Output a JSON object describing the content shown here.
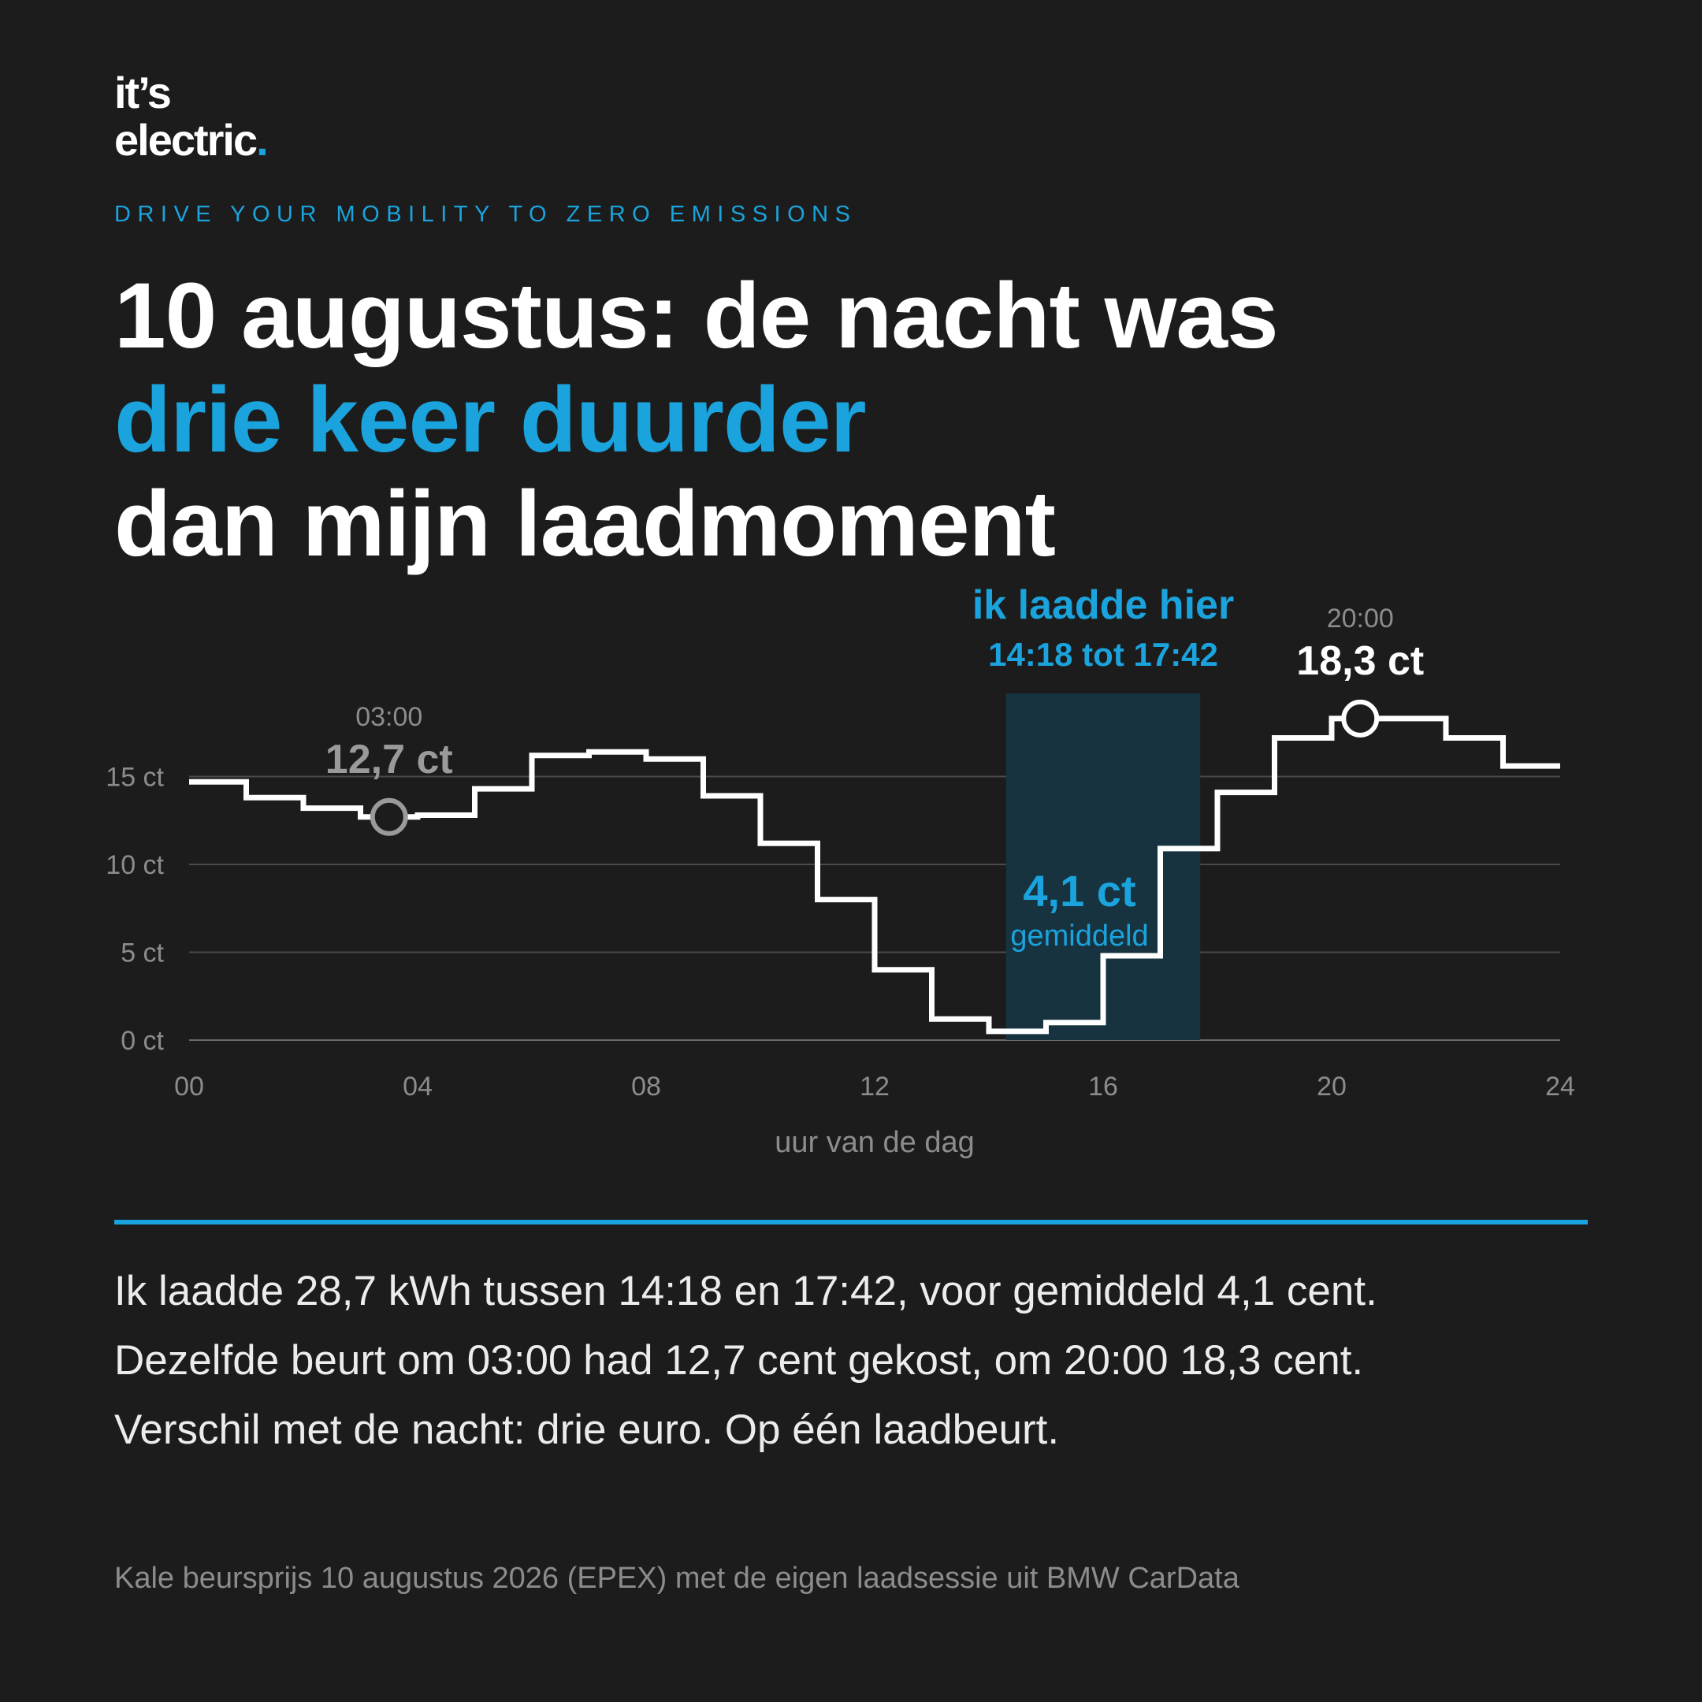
{
  "logo": {
    "line1": "it’s",
    "line2": "electric",
    "dot": "."
  },
  "tagline": "DRIVE YOUR MOBILITY TO ZERO EMISSIONS",
  "headline": {
    "line1": "10 augustus: de nacht was",
    "line2": "drie keer duurder",
    "line3": "dan mijn laadmoment"
  },
  "colors": {
    "background": "#1c1c1c",
    "accent": "#1aa3dd",
    "line": "#ffffff",
    "muted": "#8c8c8c",
    "highlight_band": "#17333f"
  },
  "chart_data": {
    "type": "line",
    "step": true,
    "xlabel": "uur van de dag",
    "ylabel": "",
    "x_ticks": [
      "00",
      "04",
      "08",
      "12",
      "16",
      "20",
      "24"
    ],
    "y_ticks": [
      "0 ct",
      "5 ct",
      "10 ct",
      "15 ct"
    ],
    "xlim": [
      0,
      24
    ],
    "ylim": [
      0,
      17.5
    ],
    "grid": true,
    "series": [
      {
        "values": [
          14.7,
          13.8,
          13.2,
          12.7,
          12.8,
          14.3,
          16.2,
          16.4,
          16.0,
          13.9,
          11.2,
          8.0,
          4.0,
          1.2,
          0.5,
          1.0,
          4.8,
          10.9,
          14.1,
          17.2,
          18.3,
          18.3,
          17.2,
          15.6
        ]
      }
    ],
    "charge_window": {
      "start_hour": 14.3,
      "end_hour": 17.7,
      "label": "ik laadde hier",
      "time": "14:18 tot 17:42",
      "avg_value": "4,1 ct",
      "avg_label": "gemiddeld"
    },
    "annotations": [
      {
        "hour": 3.5,
        "value": 12.7,
        "time": "03:00",
        "label": "12,7 ct",
        "style": "muted"
      },
      {
        "hour": 20.5,
        "value": 18.3,
        "time": "20:00",
        "label": "18,3 ct",
        "style": "highlight"
      }
    ]
  },
  "body": {
    "line1": "Ik laadde 28,7 kWh tussen 14:18 en 17:42, voor gemiddeld 4,1 cent.",
    "line2": "Dezelfde beurt om 03:00 had 12,7 cent gekost, om 20:00 18,3 cent.",
    "line3": "Verschil met de nacht: drie euro. Op één laadbeurt."
  },
  "source": "Kale beursprijs 10 augustus 2026 (EPEX) met de eigen laadsessie uit BMW CarData"
}
